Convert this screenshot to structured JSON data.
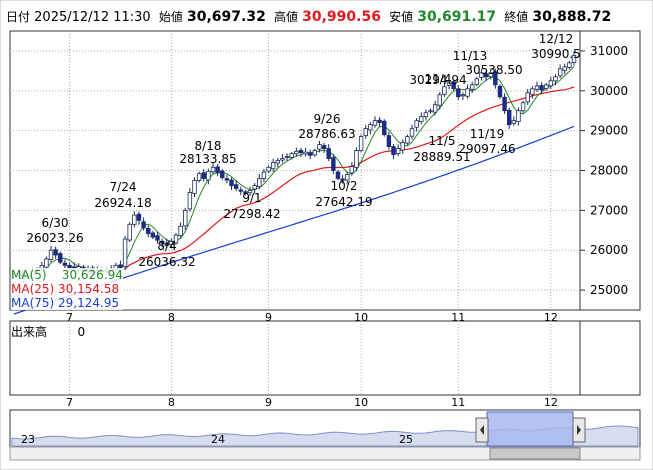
{
  "header": {
    "date_label": "日付",
    "date_value": "2025/12/12 11:30",
    "open_label": "始値",
    "open_value": "30,697.32",
    "high_label": "高値",
    "high_value": "30,990.56",
    "low_label": "安値",
    "low_value": "30,691.17",
    "close_label": "終値",
    "close_value": "30,888.72"
  },
  "moving_averages": [
    {
      "label": "MA(5)",
      "value": "30,626.94",
      "color": "#228b22"
    },
    {
      "label": "MA(25)",
      "value": "30,154.58",
      "color": "#e0191e"
    },
    {
      "label": "MA(75)",
      "value": "29,124.95",
      "color": "#1a3fd6"
    }
  ],
  "volume": {
    "label": "出来高",
    "value": "0"
  },
  "colors": {
    "up": "#ffffff",
    "down": "#1a2a9a",
    "grid": "#999999",
    "navigator_fill": "#a8b8f0"
  },
  "chart_data": {
    "type": "candlestick",
    "title": "",
    "ylim": [
      24500,
      31500
    ],
    "yticks": [
      25000,
      26000,
      27000,
      28000,
      29000,
      30000,
      31000
    ],
    "xtick_labels": [
      "7",
      "8",
      "9",
      "10",
      "11",
      "12"
    ],
    "xtick_index": [
      12,
      34,
      55,
      75,
      96,
      116
    ],
    "navigator_labels": [
      "23",
      "24",
      "25"
    ],
    "annotations": [
      {
        "date": "6/30",
        "value": "26023.26"
      },
      {
        "date": "7/24",
        "value": "26924.18"
      },
      {
        "date": "8/4",
        "value": "26036.32"
      },
      {
        "date": "8/18",
        "value": "28133.85"
      },
      {
        "date": "9/1",
        "value": "27298.42"
      },
      {
        "date": "9/26",
        "value": "28786.63"
      },
      {
        "date": "10/2",
        "value": "27642.19"
      },
      {
        "date": "11/4",
        "value": "30294.94"
      },
      {
        "date": "11/5",
        "value": "28889.51"
      },
      {
        "date": "11/13",
        "value": "30538.50"
      },
      {
        "date": "11/19",
        "value": "29097.46"
      },
      {
        "date": "12/12",
        "value": "30990.5"
      }
    ],
    "close": [
      25390,
      25420,
      25280,
      25350,
      25480,
      25520,
      25610,
      25780,
      26000,
      25880,
      25700,
      25620,
      25560,
      25520,
      25590,
      25470,
      25520,
      25410,
      25480,
      25450,
      25510,
      25530,
      25620,
      25560,
      26280,
      26650,
      26880,
      26750,
      26560,
      26420,
      26330,
      26250,
      26180,
      26120,
      26220,
      26380,
      26600,
      27000,
      27450,
      27750,
      27920,
      27800,
      27980,
      28080,
      27950,
      27820,
      27760,
      27620,
      27550,
      27480,
      27430,
      27500,
      27620,
      27800,
      27960,
      28080,
      28200,
      28250,
      28300,
      28350,
      28420,
      28480,
      28450,
      28460,
      28380,
      28500,
      28650,
      28550,
      28300,
      28000,
      27800,
      27750,
      27900,
      28100,
      28500,
      28850,
      29050,
      29150,
      29250,
      29200,
      28900,
      28600,
      28400,
      28550,
      28700,
      28850,
      29050,
      29250,
      29350,
      29450,
      29500,
      29650,
      29900,
      30100,
      30250,
      30050,
      29850,
      29900,
      30050,
      30150,
      30300,
      30450,
      30350,
      30450,
      30150,
      29850,
      29500,
      29150,
      29250,
      29500,
      29700,
      29950,
      30050,
      30120,
      30020,
      30150,
      30250,
      30350,
      30550,
      30600,
      30700,
      30888.72
    ]
  }
}
